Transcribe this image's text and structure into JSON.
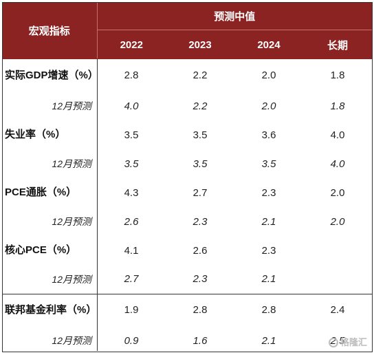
{
  "header": {
    "row_header": "宏观指标",
    "group_header": "预测中值",
    "columns": [
      "2022",
      "2023",
      "2024",
      "长期"
    ]
  },
  "rows": [
    {
      "label": "实际GDP增速（%）",
      "values": [
        "2.8",
        "2.2",
        "2.0",
        "1.8"
      ]
    },
    {
      "label": "12月预测",
      "values": [
        "4.0",
        "2.2",
        "2.0",
        "1.8"
      ]
    },
    {
      "label": "失业率（%）",
      "values": [
        "3.5",
        "3.5",
        "3.6",
        "4.0"
      ]
    },
    {
      "label": "12月预测",
      "values": [
        "3.5",
        "3.5",
        "3.5",
        "4.0"
      ]
    },
    {
      "label": "PCE通胀（%）",
      "values": [
        "4.3",
        "2.7",
        "2.3",
        "2.0"
      ]
    },
    {
      "label": "12月预测",
      "values": [
        "2.6",
        "2.3",
        "2.1",
        "2.0"
      ]
    },
    {
      "label": "核心PCE（%）",
      "values": [
        "4.1",
        "2.6",
        "2.3",
        ""
      ]
    },
    {
      "label": "12月预测",
      "values": [
        "2.7",
        "2.3",
        "2.1",
        ""
      ]
    },
    {
      "label": "联邦基金利率（%）",
      "values": [
        "1.9",
        "2.8",
        "2.8",
        "2.4"
      ]
    },
    {
      "label": "12月预测",
      "values": [
        "0.9",
        "1.6",
        "2.1",
        "2.5"
      ]
    }
  ],
  "watermark": "格隆汇"
}
